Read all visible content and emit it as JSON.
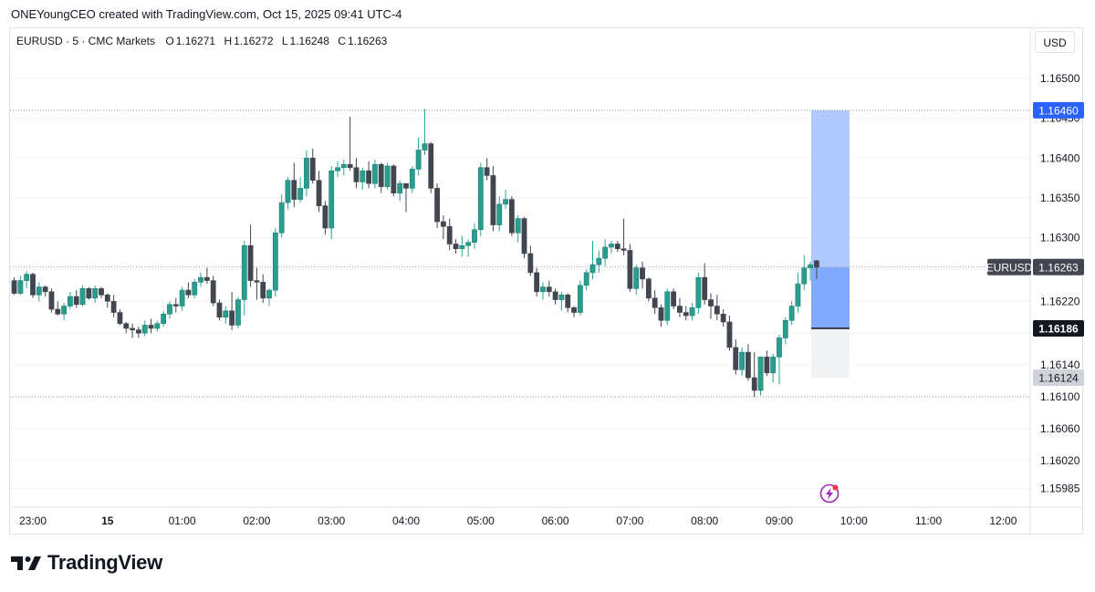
{
  "header": {
    "attribution": "ONEYoungCEO created with TradingView.com, Oct 15, 2025 09:41 UTC-4"
  },
  "legend": {
    "symbol": "EURUSD · 5 · CMC Markets",
    "open_label": "O",
    "open": "1.16271",
    "high_label": "H",
    "high": "1.16272",
    "low_label": "L",
    "low": "1.16248",
    "close_label": "C",
    "close": "1.16263"
  },
  "currency_button": "USD",
  "footer": {
    "brand": "TradingView"
  },
  "colors": {
    "up": "#26a69a",
    "down": "#42464f",
    "up_body": "#2a9d8f",
    "profit_zone": "#a7c4ff",
    "entry_zone": "#7aa6ff",
    "loss_zone": "#f2f3f5",
    "grid": "#f0f3fa",
    "dotted": "#9598a1"
  },
  "icons": {
    "lightning": "lightning-badge-icon"
  },
  "chart_data": {
    "type": "candlestick",
    "symbol": "EURUSD",
    "interval": "5",
    "ylim": [
      1.1597,
      1.1654
    ],
    "y_ticks": [
      "1.16500",
      "1.16450",
      "1.16400",
      "1.16350",
      "1.16300",
      "1.16260",
      "1.16220",
      "1.16180",
      "1.16140",
      "1.16100",
      "1.16060",
      "1.16020",
      "1.15985"
    ],
    "x_ticks": [
      "23:00",
      "15",
      "01:00",
      "02:00",
      "03:00",
      "04:00",
      "05:00",
      "06:00",
      "07:00",
      "08:00",
      "09:00",
      "10:00",
      "11:00",
      "12:00"
    ],
    "price_tags": [
      {
        "label": "1.16460",
        "value": 1.1646,
        "style": "blue"
      },
      {
        "label": "EURUSD",
        "value": 1.16263,
        "style": "symbol"
      },
      {
        "label": "1.16263",
        "value": 1.16263,
        "style": "dark"
      },
      {
        "label": "1.16186",
        "value": 1.16186,
        "style": "black"
      },
      {
        "label": "1.16124",
        "value": 1.16124,
        "style": "grey"
      }
    ],
    "horizontal_lines": [
      1.1646,
      1.16263,
      1.161
    ],
    "position": {
      "type": "long",
      "entry": 1.16186,
      "target": 1.1646,
      "stop": 1.16124,
      "current": 1.16263
    },
    "series": [
      {
        "t": "22:45",
        "o": 1.16246,
        "h": 1.1625,
        "l": 1.16228,
        "c": 1.1623
      },
      {
        "t": "22:50",
        "o": 1.1623,
        "h": 1.16252,
        "l": 1.16228,
        "c": 1.16246
      },
      {
        "t": "22:55",
        "o": 1.16246,
        "h": 1.16258,
        "l": 1.16236,
        "c": 1.16254
      },
      {
        "t": "23:00",
        "o": 1.16254,
        "h": 1.16256,
        "l": 1.16224,
        "c": 1.16228
      },
      {
        "t": "23:05",
        "o": 1.16228,
        "h": 1.16244,
        "l": 1.1622,
        "c": 1.16238
      },
      {
        "t": "23:10",
        "o": 1.16238,
        "h": 1.1624,
        "l": 1.16226,
        "c": 1.16232
      },
      {
        "t": "23:15",
        "o": 1.16232,
        "h": 1.16236,
        "l": 1.16206,
        "c": 1.1621
      },
      {
        "t": "23:20",
        "o": 1.1621,
        "h": 1.1622,
        "l": 1.16202,
        "c": 1.16204
      },
      {
        "t": "23:25",
        "o": 1.16204,
        "h": 1.16218,
        "l": 1.16196,
        "c": 1.16214
      },
      {
        "t": "23:30",
        "o": 1.16214,
        "h": 1.16232,
        "l": 1.1621,
        "c": 1.16226
      },
      {
        "t": "23:35",
        "o": 1.16226,
        "h": 1.16234,
        "l": 1.16212,
        "c": 1.16216
      },
      {
        "t": "23:40",
        "o": 1.16216,
        "h": 1.1624,
        "l": 1.16214,
        "c": 1.16236
      },
      {
        "t": "23:45",
        "o": 1.16236,
        "h": 1.16238,
        "l": 1.16222,
        "c": 1.16224
      },
      {
        "t": "23:50",
        "o": 1.16224,
        "h": 1.1624,
        "l": 1.16218,
        "c": 1.16236
      },
      {
        "t": "23:55",
        "o": 1.16236,
        "h": 1.16238,
        "l": 1.16224,
        "c": 1.16228
      },
      {
        "t": "00:00",
        "o": 1.16228,
        "h": 1.1623,
        "l": 1.16212,
        "c": 1.1622
      },
      {
        "t": "00:05",
        "o": 1.1622,
        "h": 1.16228,
        "l": 1.162,
        "c": 1.16206
      },
      {
        "t": "00:10",
        "o": 1.16206,
        "h": 1.1621,
        "l": 1.1619,
        "c": 1.16192
      },
      {
        "t": "00:15",
        "o": 1.16192,
        "h": 1.16194,
        "l": 1.1618,
        "c": 1.16186
      },
      {
        "t": "00:20",
        "o": 1.16186,
        "h": 1.16192,
        "l": 1.16174,
        "c": 1.16184
      },
      {
        "t": "00:25",
        "o": 1.16184,
        "h": 1.16188,
        "l": 1.16174,
        "c": 1.1618
      },
      {
        "t": "00:30",
        "o": 1.1618,
        "h": 1.16196,
        "l": 1.16176,
        "c": 1.1619
      },
      {
        "t": "00:35",
        "o": 1.1619,
        "h": 1.16198,
        "l": 1.1618,
        "c": 1.16186
      },
      {
        "t": "00:40",
        "o": 1.16186,
        "h": 1.16196,
        "l": 1.16182,
        "c": 1.16192
      },
      {
        "t": "00:45",
        "o": 1.16192,
        "h": 1.16208,
        "l": 1.16188,
        "c": 1.16204
      },
      {
        "t": "00:50",
        "o": 1.16204,
        "h": 1.1622,
        "l": 1.16198,
        "c": 1.16216
      },
      {
        "t": "00:55",
        "o": 1.16216,
        "h": 1.16224,
        "l": 1.16206,
        "c": 1.16214
      },
      {
        "t": "01:00",
        "o": 1.16214,
        "h": 1.16238,
        "l": 1.16208,
        "c": 1.16234
      },
      {
        "t": "01:05",
        "o": 1.16234,
        "h": 1.16244,
        "l": 1.16224,
        "c": 1.16228
      },
      {
        "t": "01:10",
        "o": 1.16228,
        "h": 1.16248,
        "l": 1.16224,
        "c": 1.16244
      },
      {
        "t": "01:15",
        "o": 1.16244,
        "h": 1.16256,
        "l": 1.16238,
        "c": 1.1625
      },
      {
        "t": "01:20",
        "o": 1.1625,
        "h": 1.16262,
        "l": 1.16242,
        "c": 1.16246
      },
      {
        "t": "01:25",
        "o": 1.16246,
        "h": 1.16252,
        "l": 1.16214,
        "c": 1.16218
      },
      {
        "t": "01:30",
        "o": 1.16218,
        "h": 1.16222,
        "l": 1.16196,
        "c": 1.162
      },
      {
        "t": "01:35",
        "o": 1.162,
        "h": 1.16214,
        "l": 1.16192,
        "c": 1.16208
      },
      {
        "t": "01:40",
        "o": 1.16208,
        "h": 1.16232,
        "l": 1.16184,
        "c": 1.1619
      },
      {
        "t": "01:45",
        "o": 1.1619,
        "h": 1.16226,
        "l": 1.16186,
        "c": 1.16222
      },
      {
        "t": "01:50",
        "o": 1.16222,
        "h": 1.16296,
        "l": 1.16202,
        "c": 1.1629
      },
      {
        "t": "01:55",
        "o": 1.1629,
        "h": 1.16316,
        "l": 1.16238,
        "c": 1.16246
      },
      {
        "t": "02:00",
        "o": 1.16246,
        "h": 1.16262,
        "l": 1.16222,
        "c": 1.16244
      },
      {
        "t": "02:05",
        "o": 1.16244,
        "h": 1.16254,
        "l": 1.16218,
        "c": 1.16224
      },
      {
        "t": "02:10",
        "o": 1.16224,
        "h": 1.16236,
        "l": 1.16214,
        "c": 1.16234
      },
      {
        "t": "02:15",
        "o": 1.16234,
        "h": 1.16312,
        "l": 1.16226,
        "c": 1.16306
      },
      {
        "t": "02:20",
        "o": 1.16306,
        "h": 1.16354,
        "l": 1.163,
        "c": 1.16344
      },
      {
        "t": "02:25",
        "o": 1.16344,
        "h": 1.16376,
        "l": 1.16336,
        "c": 1.16372
      },
      {
        "t": "02:30",
        "o": 1.16372,
        "h": 1.16394,
        "l": 1.16338,
        "c": 1.16348
      },
      {
        "t": "02:35",
        "o": 1.16348,
        "h": 1.16376,
        "l": 1.16344,
        "c": 1.16362
      },
      {
        "t": "02:40",
        "o": 1.16362,
        "h": 1.1641,
        "l": 1.16352,
        "c": 1.164
      },
      {
        "t": "02:45",
        "o": 1.164,
        "h": 1.16412,
        "l": 1.16368,
        "c": 1.16372
      },
      {
        "t": "02:50",
        "o": 1.16372,
        "h": 1.16384,
        "l": 1.16332,
        "c": 1.1634
      },
      {
        "t": "02:55",
        "o": 1.1634,
        "h": 1.16346,
        "l": 1.16304,
        "c": 1.16312
      },
      {
        "t": "03:00",
        "o": 1.16312,
        "h": 1.1639,
        "l": 1.16298,
        "c": 1.16384
      },
      {
        "t": "03:05",
        "o": 1.16384,
        "h": 1.16396,
        "l": 1.16376,
        "c": 1.16388
      },
      {
        "t": "03:10",
        "o": 1.16388,
        "h": 1.16398,
        "l": 1.16378,
        "c": 1.16392
      },
      {
        "t": "03:15",
        "o": 1.16392,
        "h": 1.16452,
        "l": 1.16384,
        "c": 1.16388
      },
      {
        "t": "03:20",
        "o": 1.16388,
        "h": 1.164,
        "l": 1.16362,
        "c": 1.1637
      },
      {
        "t": "03:25",
        "o": 1.1637,
        "h": 1.16388,
        "l": 1.1636,
        "c": 1.16384
      },
      {
        "t": "03:30",
        "o": 1.16384,
        "h": 1.16396,
        "l": 1.16362,
        "c": 1.16368
      },
      {
        "t": "03:35",
        "o": 1.16368,
        "h": 1.16398,
        "l": 1.16362,
        "c": 1.16392
      },
      {
        "t": "03:40",
        "o": 1.16392,
        "h": 1.16394,
        "l": 1.16356,
        "c": 1.16364
      },
      {
        "t": "03:45",
        "o": 1.16364,
        "h": 1.16394,
        "l": 1.1636,
        "c": 1.1639
      },
      {
        "t": "03:50",
        "o": 1.1639,
        "h": 1.16392,
        "l": 1.16352,
        "c": 1.16356
      },
      {
        "t": "03:55",
        "o": 1.16356,
        "h": 1.16372,
        "l": 1.16346,
        "c": 1.16368
      },
      {
        "t": "04:00",
        "o": 1.16368,
        "h": 1.16366,
        "l": 1.16332,
        "c": 1.16362
      },
      {
        "t": "04:05",
        "o": 1.16362,
        "h": 1.1639,
        "l": 1.16356,
        "c": 1.16386
      },
      {
        "t": "04:10",
        "o": 1.16386,
        "h": 1.16426,
        "l": 1.16378,
        "c": 1.1641
      },
      {
        "t": "04:15",
        "o": 1.1641,
        "h": 1.16462,
        "l": 1.16404,
        "c": 1.16418
      },
      {
        "t": "04:20",
        "o": 1.16418,
        "h": 1.1642,
        "l": 1.16356,
        "c": 1.16362
      },
      {
        "t": "04:25",
        "o": 1.16362,
        "h": 1.16368,
        "l": 1.16312,
        "c": 1.1632
      },
      {
        "t": "04:30",
        "o": 1.1632,
        "h": 1.16328,
        "l": 1.16298,
        "c": 1.16314
      },
      {
        "t": "04:35",
        "o": 1.16314,
        "h": 1.16324,
        "l": 1.16284,
        "c": 1.16292
      },
      {
        "t": "04:40",
        "o": 1.16292,
        "h": 1.16298,
        "l": 1.1628,
        "c": 1.16286
      },
      {
        "t": "04:45",
        "o": 1.16286,
        "h": 1.16302,
        "l": 1.16276,
        "c": 1.1629
      },
      {
        "t": "04:50",
        "o": 1.1629,
        "h": 1.16298,
        "l": 1.16276,
        "c": 1.16294
      },
      {
        "t": "04:55",
        "o": 1.16294,
        "h": 1.16318,
        "l": 1.16286,
        "c": 1.1631
      },
      {
        "t": "05:00",
        "o": 1.1631,
        "h": 1.16394,
        "l": 1.16302,
        "c": 1.16388
      },
      {
        "t": "05:05",
        "o": 1.16388,
        "h": 1.164,
        "l": 1.16372,
        "c": 1.16378
      },
      {
        "t": "05:10",
        "o": 1.16378,
        "h": 1.1639,
        "l": 1.16308,
        "c": 1.16316
      },
      {
        "t": "05:15",
        "o": 1.16316,
        "h": 1.16352,
        "l": 1.16308,
        "c": 1.16342
      },
      {
        "t": "05:20",
        "o": 1.16342,
        "h": 1.1636,
        "l": 1.16336,
        "c": 1.16348
      },
      {
        "t": "05:25",
        "o": 1.16348,
        "h": 1.16352,
        "l": 1.16302,
        "c": 1.16306
      },
      {
        "t": "05:30",
        "o": 1.16306,
        "h": 1.16328,
        "l": 1.16294,
        "c": 1.16324
      },
      {
        "t": "05:35",
        "o": 1.16324,
        "h": 1.16326,
        "l": 1.16274,
        "c": 1.1628
      },
      {
        "t": "05:40",
        "o": 1.1628,
        "h": 1.1629,
        "l": 1.16252,
        "c": 1.16256
      },
      {
        "t": "05:45",
        "o": 1.16256,
        "h": 1.16262,
        "l": 1.16226,
        "c": 1.16232
      },
      {
        "t": "05:50",
        "o": 1.16232,
        "h": 1.16244,
        "l": 1.16222,
        "c": 1.16238
      },
      {
        "t": "05:55",
        "o": 1.16238,
        "h": 1.16246,
        "l": 1.16226,
        "c": 1.16232
      },
      {
        "t": "06:00",
        "o": 1.16232,
        "h": 1.16236,
        "l": 1.16216,
        "c": 1.16222
      },
      {
        "t": "06:05",
        "o": 1.16222,
        "h": 1.16232,
        "l": 1.16208,
        "c": 1.16228
      },
      {
        "t": "06:10",
        "o": 1.16228,
        "h": 1.1623,
        "l": 1.16206,
        "c": 1.16212
      },
      {
        "t": "06:15",
        "o": 1.16212,
        "h": 1.16214,
        "l": 1.162,
        "c": 1.16206
      },
      {
        "t": "06:20",
        "o": 1.16206,
        "h": 1.16246,
        "l": 1.16202,
        "c": 1.1624
      },
      {
        "t": "06:25",
        "o": 1.1624,
        "h": 1.1626,
        "l": 1.16234,
        "c": 1.16256
      },
      {
        "t": "06:30",
        "o": 1.16256,
        "h": 1.16296,
        "l": 1.16248,
        "c": 1.16266
      },
      {
        "t": "06:35",
        "o": 1.16266,
        "h": 1.16284,
        "l": 1.16256,
        "c": 1.16274
      },
      {
        "t": "06:40",
        "o": 1.16274,
        "h": 1.16298,
        "l": 1.16264,
        "c": 1.16288
      },
      {
        "t": "06:45",
        "o": 1.16288,
        "h": 1.16296,
        "l": 1.1628,
        "c": 1.16292
      },
      {
        "t": "06:50",
        "o": 1.16292,
        "h": 1.16296,
        "l": 1.16282,
        "c": 1.16286
      },
      {
        "t": "06:55",
        "o": 1.16286,
        "h": 1.16324,
        "l": 1.16278,
        "c": 1.16284
      },
      {
        "t": "07:00",
        "o": 1.16284,
        "h": 1.16292,
        "l": 1.16232,
        "c": 1.16236
      },
      {
        "t": "07:05",
        "o": 1.16236,
        "h": 1.16266,
        "l": 1.16228,
        "c": 1.16262
      },
      {
        "t": "07:10",
        "o": 1.16262,
        "h": 1.1627,
        "l": 1.16236,
        "c": 1.16248
      },
      {
        "t": "07:15",
        "o": 1.16248,
        "h": 1.1625,
        "l": 1.1622,
        "c": 1.16224
      },
      {
        "t": "07:20",
        "o": 1.16224,
        "h": 1.16234,
        "l": 1.16204,
        "c": 1.16212
      },
      {
        "t": "07:25",
        "o": 1.16212,
        "h": 1.16216,
        "l": 1.16188,
        "c": 1.16196
      },
      {
        "t": "07:30",
        "o": 1.16196,
        "h": 1.16236,
        "l": 1.1619,
        "c": 1.16232
      },
      {
        "t": "07:35",
        "o": 1.16232,
        "h": 1.16236,
        "l": 1.1621,
        "c": 1.16214
      },
      {
        "t": "07:40",
        "o": 1.16214,
        "h": 1.16224,
        "l": 1.162,
        "c": 1.16206
      },
      {
        "t": "07:45",
        "o": 1.16206,
        "h": 1.16214,
        "l": 1.16196,
        "c": 1.16202
      },
      {
        "t": "07:50",
        "o": 1.16202,
        "h": 1.16218,
        "l": 1.16196,
        "c": 1.16212
      },
      {
        "t": "07:55",
        "o": 1.16212,
        "h": 1.16256,
        "l": 1.16204,
        "c": 1.1625
      },
      {
        "t": "08:00",
        "o": 1.1625,
        "h": 1.16268,
        "l": 1.16216,
        "c": 1.16222
      },
      {
        "t": "08:05",
        "o": 1.16222,
        "h": 1.1623,
        "l": 1.16198,
        "c": 1.16214
      },
      {
        "t": "08:10",
        "o": 1.16214,
        "h": 1.16228,
        "l": 1.16196,
        "c": 1.16204
      },
      {
        "t": "08:15",
        "o": 1.16204,
        "h": 1.1621,
        "l": 1.16188,
        "c": 1.16194
      },
      {
        "t": "08:20",
        "o": 1.16194,
        "h": 1.16202,
        "l": 1.16158,
        "c": 1.16162
      },
      {
        "t": "08:25",
        "o": 1.16162,
        "h": 1.16172,
        "l": 1.16128,
        "c": 1.16134
      },
      {
        "t": "08:30",
        "o": 1.16134,
        "h": 1.16162,
        "l": 1.16126,
        "c": 1.16156
      },
      {
        "t": "08:35",
        "o": 1.16156,
        "h": 1.16166,
        "l": 1.1612,
        "c": 1.16124
      },
      {
        "t": "08:40",
        "o": 1.16124,
        "h": 1.16156,
        "l": 1.161,
        "c": 1.16108
      },
      {
        "t": "08:45",
        "o": 1.16108,
        "h": 1.1615,
        "l": 1.16102,
        "c": 1.1615
      },
      {
        "t": "08:50",
        "o": 1.1615,
        "h": 1.16158,
        "l": 1.16126,
        "c": 1.1613
      },
      {
        "t": "08:55",
        "o": 1.1613,
        "h": 1.16154,
        "l": 1.16118,
        "c": 1.1615
      },
      {
        "t": "09:00",
        "o": 1.1615,
        "h": 1.16178,
        "l": 1.16116,
        "c": 1.16174
      },
      {
        "t": "09:05",
        "o": 1.16174,
        "h": 1.162,
        "l": 1.16166,
        "c": 1.16196
      },
      {
        "t": "09:10",
        "o": 1.16196,
        "h": 1.1622,
        "l": 1.1619,
        "c": 1.16214
      },
      {
        "t": "09:15",
        "o": 1.16214,
        "h": 1.16256,
        "l": 1.16206,
        "c": 1.16242
      },
      {
        "t": "09:20",
        "o": 1.16242,
        "h": 1.16278,
        "l": 1.16234,
        "c": 1.16262
      },
      {
        "t": "09:25",
        "o": 1.16262,
        "h": 1.1627,
        "l": 1.16246,
        "c": 1.16266
      },
      {
        "t": "09:30",
        "o": 1.16271,
        "h": 1.16272,
        "l": 1.16248,
        "c": 1.16263
      }
    ]
  }
}
